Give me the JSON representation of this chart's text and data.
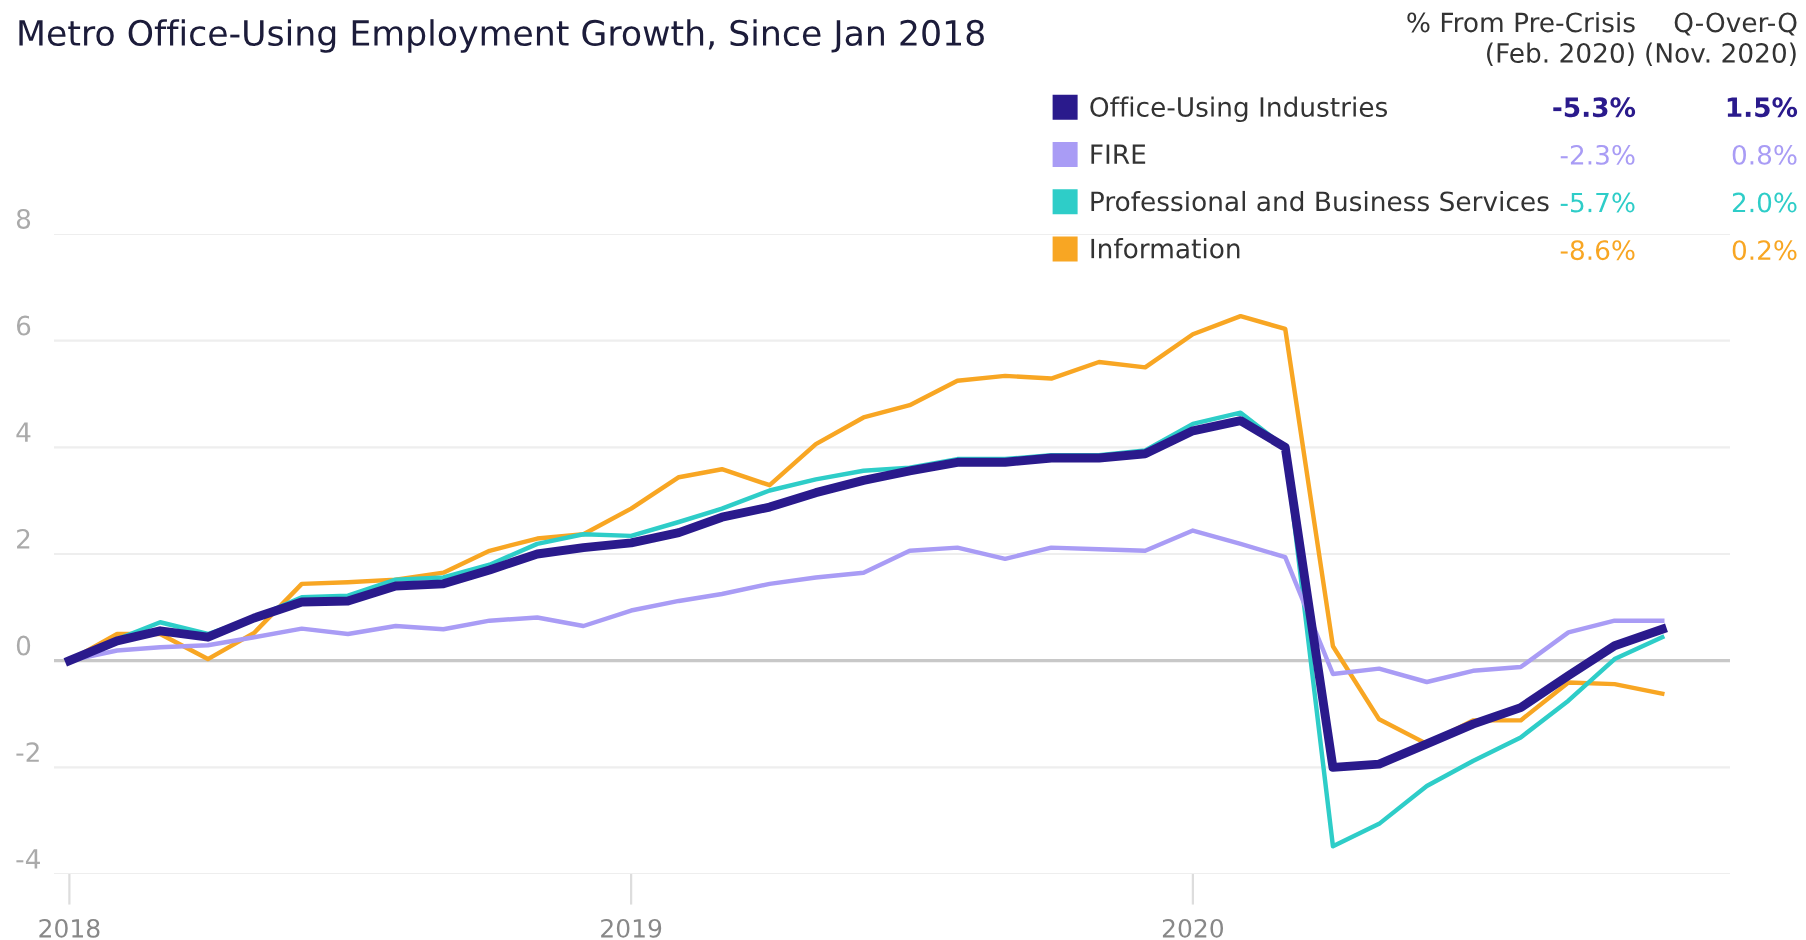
{
  "chart_data": {
    "type": "line",
    "title": "Metro Office-Using Employment Growth, Since Jan 2018",
    "x": [
      "2018-01",
      "2018-02",
      "2018-03",
      "2018-04",
      "2018-05",
      "2018-06",
      "2018-07",
      "2018-08",
      "2018-09",
      "2018-10",
      "2018-11",
      "2018-12",
      "2019-01",
      "2019-02",
      "2019-03",
      "2019-04",
      "2019-05",
      "2019-06",
      "2019-07",
      "2019-08",
      "2019-09",
      "2019-10",
      "2019-11",
      "2019-12",
      "2020-01",
      "2020-02",
      "2020-03",
      "2020-04",
      "2020-05",
      "2020-06",
      "2020-07",
      "2020-08",
      "2020-09",
      "2020-10",
      "2020-11"
    ],
    "series": [
      {
        "name": "Office-Using Industries",
        "color": "#2a1a8c",
        "values": [
          0,
          0.37,
          0.56,
          0.44,
          0.8,
          1.1,
          1.12,
          1.4,
          1.44,
          1.7,
          2.0,
          2.12,
          2.21,
          2.4,
          2.69,
          2.88,
          3.15,
          3.38,
          3.56,
          3.72,
          3.72,
          3.8,
          3.8,
          3.88,
          4.31,
          4.5,
          4.0,
          -2.0,
          -1.94,
          -1.56,
          -1.19,
          -0.88,
          -0.28,
          0.28,
          0.59
        ]
      },
      {
        "name": "FIRE",
        "color": "#a99cf5",
        "values": [
          0,
          0.19,
          0.25,
          0.29,
          0.44,
          0.6,
          0.5,
          0.65,
          0.59,
          0.75,
          0.81,
          0.65,
          0.94,
          1.12,
          1.25,
          1.44,
          1.56,
          1.65,
          2.06,
          2.12,
          1.91,
          2.12,
          2.09,
          2.06,
          2.44,
          2.19,
          1.94,
          -0.25,
          -0.15,
          -0.4,
          -0.19,
          -0.12,
          0.53,
          0.75,
          0.75
        ]
      },
      {
        "name": "Professional and Business Services",
        "color": "#2ecdc8",
        "values": [
          0,
          0.4,
          0.72,
          0.5,
          0.8,
          1.19,
          1.22,
          1.52,
          1.56,
          1.8,
          2.19,
          2.37,
          2.34,
          2.6,
          2.85,
          3.19,
          3.4,
          3.56,
          3.62,
          3.78,
          3.78,
          3.85,
          3.85,
          3.94,
          4.44,
          4.65,
          4.0,
          -3.48,
          -3.06,
          -2.35,
          -1.88,
          -1.44,
          -0.75,
          0.03,
          0.44
        ]
      },
      {
        "name": "Information",
        "color": "#f8a623",
        "values": [
          0,
          0.5,
          0.5,
          0.03,
          0.52,
          1.44,
          1.47,
          1.52,
          1.65,
          2.06,
          2.29,
          2.37,
          2.85,
          3.44,
          3.59,
          3.29,
          4.06,
          4.56,
          4.79,
          5.25,
          5.34,
          5.29,
          5.6,
          5.5,
          6.12,
          6.46,
          6.22,
          0.27,
          -1.1,
          -1.56,
          -1.12,
          -1.12,
          -0.41,
          -0.44,
          -0.62
        ]
      }
    ],
    "xlim": [
      "2017-12-22",
      "2020-12-15"
    ],
    "xticks": [
      {
        "value": "2018-01-01",
        "label": "2018"
      },
      {
        "value": "2019-01-01",
        "label": "2019"
      },
      {
        "value": "2020-01-01",
        "label": "2020"
      }
    ],
    "ylim": [
      -4,
      8
    ],
    "yticks": [
      -4,
      -2,
      0,
      2,
      4,
      6,
      8
    ],
    "ref_lines": [
      {
        "axis": "y",
        "value": 0,
        "color": "#c8c8c8"
      }
    ],
    "grid": "y",
    "legend": "top right",
    "marker": "none",
    "line_style": "solid",
    "annotations": [
      "% From Pre-Crisis\n(Feb. 2020)",
      "Q-Over-Q\n(Nov. 2020)",
      "-5.3%",
      "1.5%",
      "-2.3%",
      "0.8%",
      "-5.7%",
      "2.0%",
      "-8.6%",
      "0.2%"
    ]
  }
}
